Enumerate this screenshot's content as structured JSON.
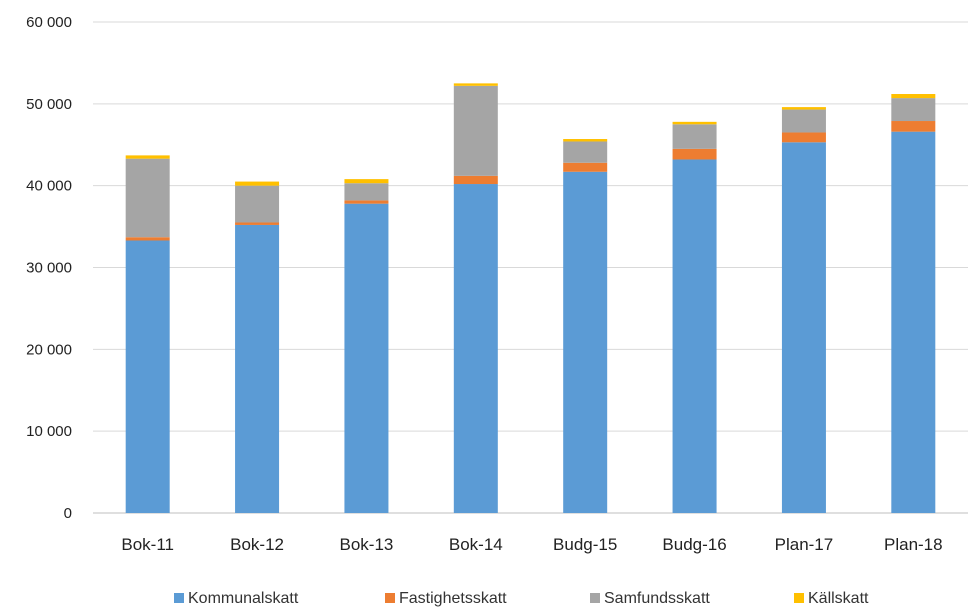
{
  "chart_data": {
    "type": "bar",
    "stacked": true,
    "categories": [
      "Bok-11",
      "Bok-12",
      "Bok-13",
      "Bok-14",
      "Budg-15",
      "Budg-16",
      "Plan-17",
      "Plan-18"
    ],
    "series": [
      {
        "name": "Kommunalskatt",
        "color": "#5b9bd5",
        "values": [
          33300,
          35200,
          37800,
          40200,
          41700,
          43200,
          45300,
          46600
        ]
      },
      {
        "name": "Fastighetsskatt",
        "color": "#ed7d31",
        "values": [
          400,
          300,
          400,
          1000,
          1100,
          1300,
          1200,
          1300
        ]
      },
      {
        "name": "Samfundsskatt",
        "color": "#a5a5a5",
        "values": [
          9600,
          4500,
          2100,
          11000,
          2600,
          3000,
          2800,
          2800
        ]
      },
      {
        "name": "Källskatt",
        "color": "#ffc000",
        "values": [
          400,
          500,
          500,
          300,
          300,
          300,
          300,
          500
        ]
      }
    ],
    "ylim": [
      0,
      60000
    ],
    "yticks": [
      0,
      10000,
      20000,
      30000,
      40000,
      50000,
      60000
    ],
    "ytick_labels": [
      "0",
      "10 000",
      "20 000",
      "30 000",
      "40 000",
      "50 000",
      "60 000"
    ],
    "grid": true,
    "legend_position": "bottom"
  }
}
